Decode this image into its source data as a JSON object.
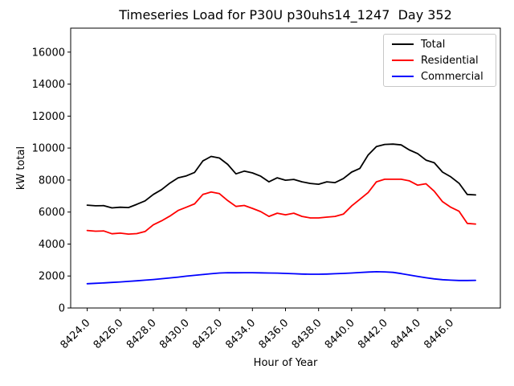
{
  "chart_data": {
    "type": "line",
    "title": "Timeseries Load for P30U p30uhs14_1247  Day 352",
    "xlabel": "Hour of Year",
    "ylabel": "kW total",
    "xlim": [
      8423,
      8449
    ],
    "ylim": [
      0,
      17500
    ],
    "grid": false,
    "legend_position": "upper right",
    "xticks": [
      {
        "value": 8424,
        "label": "8424.0"
      },
      {
        "value": 8426,
        "label": "8426.0"
      },
      {
        "value": 8428,
        "label": "8428.0"
      },
      {
        "value": 8430,
        "label": "8430.0"
      },
      {
        "value": 8432,
        "label": "8432.0"
      },
      {
        "value": 8434,
        "label": "8434.0"
      },
      {
        "value": 8436,
        "label": "8436.0"
      },
      {
        "value": 8438,
        "label": "8438.0"
      },
      {
        "value": 8440,
        "label": "8440.0"
      },
      {
        "value": 8442,
        "label": "8442.0"
      },
      {
        "value": 8444,
        "label": "8444.0"
      },
      {
        "value": 8446,
        "label": "8446.0"
      }
    ],
    "yticks": [
      {
        "value": 0,
        "label": "0"
      },
      {
        "value": 2000,
        "label": "2000"
      },
      {
        "value": 4000,
        "label": "4000"
      },
      {
        "value": 6000,
        "label": "6000"
      },
      {
        "value": 8000,
        "label": "8000"
      },
      {
        "value": 10000,
        "label": "10000"
      },
      {
        "value": 12000,
        "label": "12000"
      },
      {
        "value": 14000,
        "label": "14000"
      },
      {
        "value": 16000,
        "label": "16000"
      }
    ],
    "x": [
      8424.0,
      8424.5,
      8425.0,
      8425.5,
      8426.0,
      8426.5,
      8427.0,
      8427.5,
      8428.0,
      8428.5,
      8429.0,
      8429.5,
      8430.0,
      8430.5,
      8431.0,
      8431.5,
      8432.0,
      8432.5,
      8433.0,
      8433.5,
      8434.0,
      8434.5,
      8435.0,
      8435.5,
      8436.0,
      8436.5,
      8437.0,
      8437.5,
      8438.0,
      8438.5,
      8439.0,
      8439.5,
      8440.0,
      8440.5,
      8441.0,
      8441.5,
      8442.0,
      8442.5,
      8443.0,
      8443.5,
      8444.0,
      8444.5,
      8445.0,
      8445.5,
      8446.0,
      8446.5,
      8447.0,
      8447.5
    ],
    "series": [
      {
        "name": "Total",
        "color": "#000000",
        "values": [
          6430,
          6390,
          6400,
          6260,
          6300,
          6280,
          6480,
          6700,
          7100,
          7400,
          7810,
          8140,
          8260,
          8480,
          9200,
          9480,
          9380,
          8980,
          8390,
          8560,
          8450,
          8240,
          7890,
          8140,
          7990,
          8040,
          7890,
          7790,
          7740,
          7890,
          7840,
          8090,
          8500,
          8730,
          9570,
          10100,
          10230,
          10250,
          10200,
          9880,
          9650,
          9250,
          9080,
          8500,
          8200,
          7800,
          7100,
          7070
        ]
      },
      {
        "name": "Residential",
        "color": "#ff0000",
        "values": [
          4850,
          4800,
          4820,
          4640,
          4680,
          4620,
          4650,
          4780,
          5200,
          5450,
          5750,
          6100,
          6300,
          6510,
          7100,
          7250,
          7150,
          6720,
          6350,
          6410,
          6230,
          6030,
          5730,
          5930,
          5830,
          5930,
          5730,
          5630,
          5630,
          5680,
          5730,
          5870,
          6380,
          6800,
          7220,
          7890,
          8050,
          8050,
          8050,
          7950,
          7680,
          7770,
          7300,
          6650,
          6300,
          6050,
          5290,
          5250
        ]
      },
      {
        "name": "Commercial",
        "color": "#0000ff",
        "values": [
          1520,
          1545,
          1570,
          1600,
          1630,
          1665,
          1700,
          1740,
          1780,
          1830,
          1880,
          1930,
          1990,
          2040,
          2090,
          2140,
          2190,
          2210,
          2205,
          2210,
          2210,
          2200,
          2190,
          2180,
          2160,
          2140,
          2120,
          2110,
          2110,
          2120,
          2140,
          2160,
          2190,
          2220,
          2250,
          2270,
          2260,
          2230,
          2150,
          2060,
          1970,
          1890,
          1820,
          1770,
          1740,
          1720,
          1720,
          1730
        ]
      }
    ]
  }
}
